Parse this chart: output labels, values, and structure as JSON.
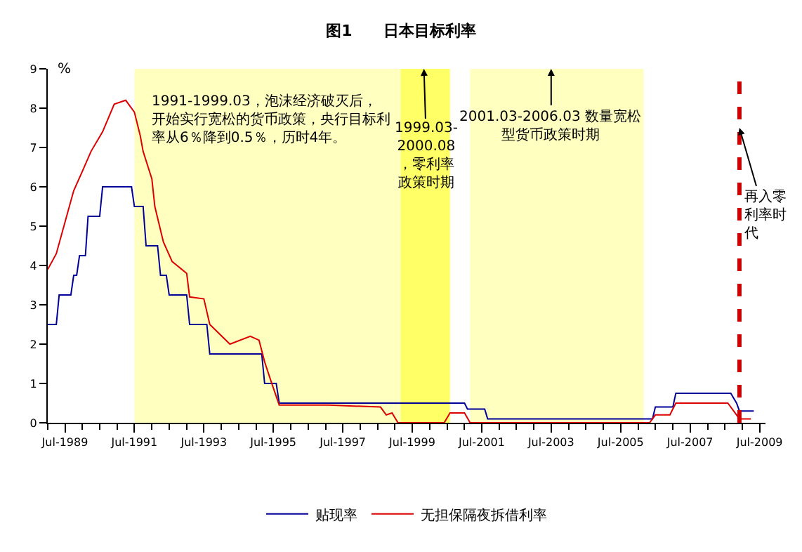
{
  "chart_data": {
    "type": "line",
    "title": "图1　　日本目标利率",
    "ylabel": "%",
    "xlim": [
      "1989-01-01",
      "2009-09-01"
    ],
    "xticks": [
      {
        "value": "1989-07",
        "label": "Jul-1989"
      },
      {
        "value": "1991-07",
        "label": "Jul-1991"
      },
      {
        "value": "1993-07",
        "label": "Jul-1993"
      },
      {
        "value": "1995-07",
        "label": "Jul-1995"
      },
      {
        "value": "1997-07",
        "label": "Jul-1997"
      },
      {
        "value": "1999-07",
        "label": "Jul-1999"
      },
      {
        "value": "2001-07",
        "label": "Jul-2001"
      },
      {
        "value": "2003-07",
        "label": "Jul-2003"
      },
      {
        "value": "2005-07",
        "label": "Jul-2005"
      },
      {
        "value": "2007-07",
        "label": "Jul-2007"
      },
      {
        "value": "2009-07",
        "label": "Jul-2009"
      }
    ],
    "ylim": [
      0,
      9
    ],
    "yticks": [
      0,
      1,
      2,
      3,
      4,
      5,
      6,
      7,
      8,
      9
    ],
    "grid": false,
    "legend": "bottom",
    "marker": "none",
    "line_style": "solid",
    "series": [
      {
        "name": "贴现率",
        "color": "#000099",
        "x": [
          "1989-01",
          "1989-04",
          "1989-05",
          "1989-09",
          "1989-10",
          "1989-11",
          "1989-12",
          "1990-02",
          "1990-03",
          "1990-07",
          "1990-08",
          "1991-06",
          "1991-07",
          "1991-10",
          "1991-11",
          "1992-03",
          "1992-04",
          "1992-06",
          "1992-07",
          "1993-01",
          "1993-02",
          "1993-08",
          "1993-09",
          "1995-03",
          "1995-04",
          "1995-08",
          "1995-09",
          "2001-01",
          "2001-02",
          "2001-08",
          "2001-09",
          "2006-06",
          "2006-07",
          "2007-01",
          "2007-02",
          "2008-09",
          "2008-11",
          "2008-12",
          "2009-05"
        ],
        "values": [
          2.5,
          2.5,
          3.25,
          3.25,
          3.75,
          3.75,
          4.25,
          4.25,
          5.25,
          5.25,
          6.0,
          6.0,
          5.5,
          5.5,
          4.5,
          4.5,
          3.75,
          3.75,
          3.25,
          3.25,
          2.5,
          2.5,
          1.75,
          1.75,
          1.0,
          1.0,
          0.5,
          0.5,
          0.35,
          0.35,
          0.1,
          0.1,
          0.4,
          0.4,
          0.75,
          0.75,
          0.5,
          0.3,
          0.3
        ]
      },
      {
        "name": "无担保隔夜拆借利率",
        "color": "#dd0000",
        "x": [
          "1989-01",
          "1989-04",
          "1989-07",
          "1989-10",
          "1990-01",
          "1990-04",
          "1990-08",
          "1990-12",
          "1991-04",
          "1991-07",
          "1991-09",
          "1991-10",
          "1992-01",
          "1992-02",
          "1992-05",
          "1992-08",
          "1993-01",
          "1993-02",
          "1993-07",
          "1993-09",
          "1994-04",
          "1994-11",
          "1995-02",
          "1995-04",
          "1995-06",
          "1995-09",
          "1997-02",
          "1998-08",
          "1998-10",
          "1998-12",
          "1999-02",
          "2000-06",
          "2000-08",
          "2001-01",
          "2001-03",
          "2006-05",
          "2006-07",
          "2006-12",
          "2007-02",
          "2008-08",
          "2008-10",
          "2008-12",
          "2009-04"
        ],
        "values": [
          3.9,
          4.3,
          5.1,
          5.9,
          6.4,
          6.9,
          7.4,
          8.1,
          8.2,
          7.9,
          7.3,
          6.9,
          6.2,
          5.5,
          4.6,
          4.1,
          3.8,
          3.2,
          3.15,
          2.5,
          2.0,
          2.2,
          2.1,
          1.55,
          1.1,
          0.45,
          0.45,
          0.4,
          0.2,
          0.25,
          0.0,
          0.0,
          0.25,
          0.25,
          0.0,
          0.0,
          0.2,
          0.2,
          0.5,
          0.5,
          0.3,
          0.1,
          0.1
        ]
      }
    ],
    "bands": [
      {
        "axis": "x",
        "from": "1991-07",
        "to": "1999-03",
        "color": "#ffffc0"
      },
      {
        "axis": "x",
        "from": "1999-03",
        "to": "2000-08",
        "color": "#ffff66"
      },
      {
        "axis": "x",
        "from": "2001-03",
        "to": "2006-03",
        "color": "#ffffc0"
      }
    ],
    "ref_lines": [
      {
        "axis": "x",
        "value": "2008-12",
        "color": "#cc0000",
        "line_style": "dashed"
      }
    ],
    "annotations": [
      "1991-1999.03，泡沫经济破灭后，开始实行宽松的货币政策，央行目标利率从6％降到0.5％，历时4年。",
      {
        "text": "1999.03-2000.08，零利率政策时期",
        "x": "1999-11",
        "y": 9
      },
      {
        "text": "2001.03-2006.03 数量宽松型货币政策时期",
        "x": "2003-07",
        "y": 9
      },
      {
        "text": "再入零利率时代",
        "x": "2008-12",
        "y": 7.5
      }
    ]
  }
}
